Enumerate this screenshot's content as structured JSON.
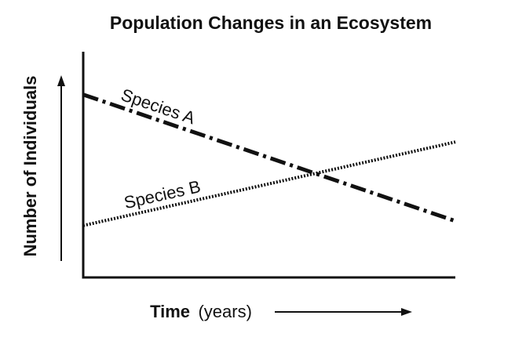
{
  "chart_data": {
    "type": "line",
    "title": "Population Changes in an Ecosystem",
    "xlabel": {
      "main": "Time",
      "unit": "(years)"
    },
    "ylabel": "Number of Individuals",
    "x": [
      0,
      1
    ],
    "xlim": [
      0,
      1
    ],
    "ylim": [
      0,
      1
    ],
    "grid": false,
    "axis_arrows": true,
    "series": [
      {
        "name": "Species A",
        "values": [
          0.81,
          0.25
        ],
        "line_style": "dash-dot",
        "color": "#111111"
      },
      {
        "name": "Species B",
        "values": [
          0.23,
          0.6
        ],
        "line_style": "dotted",
        "color": "#111111"
      }
    ]
  }
}
